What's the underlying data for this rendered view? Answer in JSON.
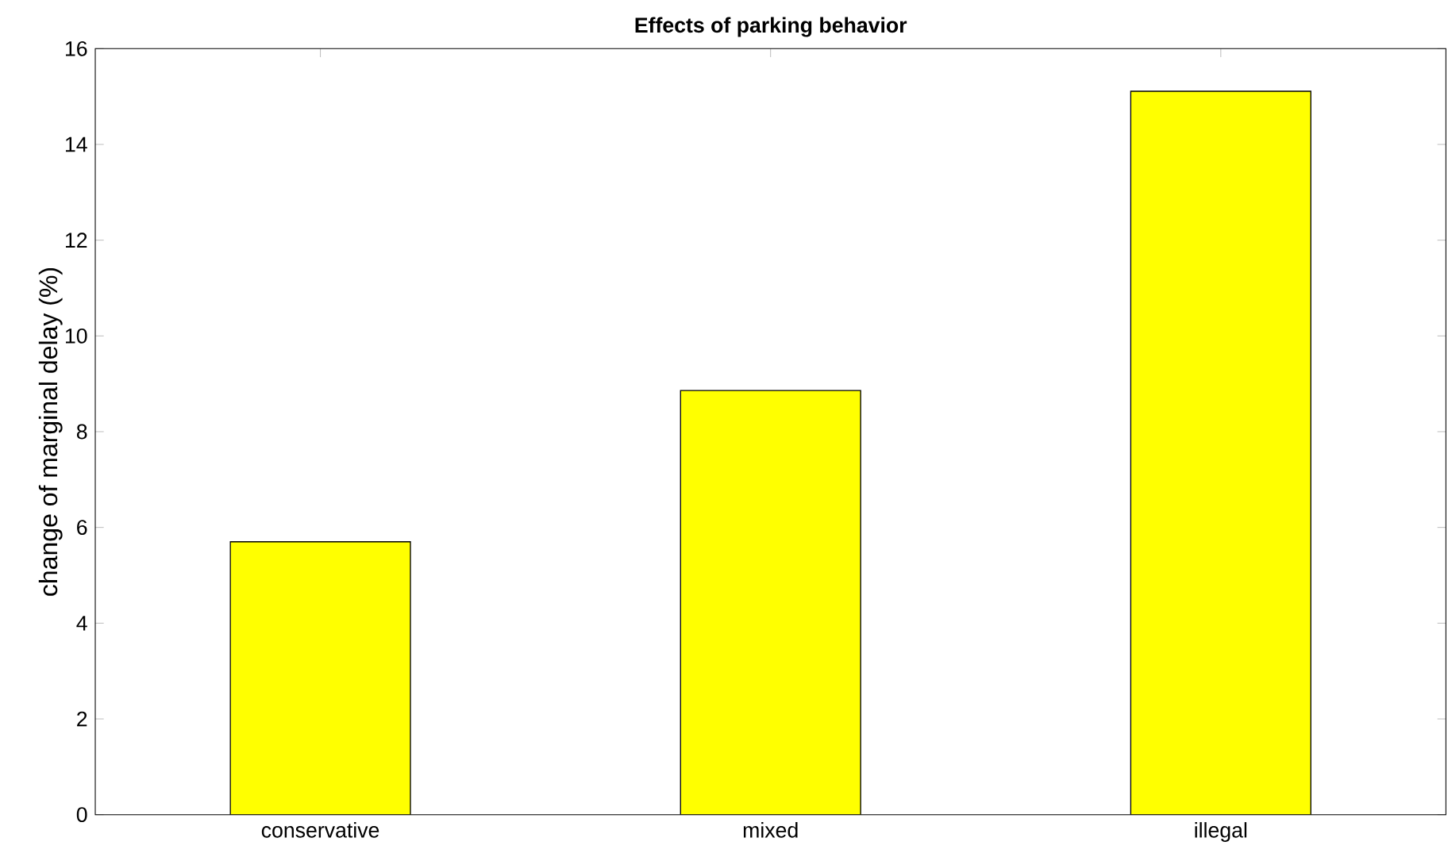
{
  "chart_data": {
    "type": "bar",
    "title": "Effects of parking behavior",
    "ylabel": "change of marginal delay (%)",
    "categories": [
      "conservative",
      "mixed",
      "illegal"
    ],
    "values": [
      5.7,
      8.86,
      15.11
    ],
    "color": "#ffff00",
    "ylim": [
      0,
      16
    ],
    "yticks": [
      0,
      2,
      4,
      6,
      8,
      10,
      12,
      14,
      16
    ],
    "grid": false
  }
}
